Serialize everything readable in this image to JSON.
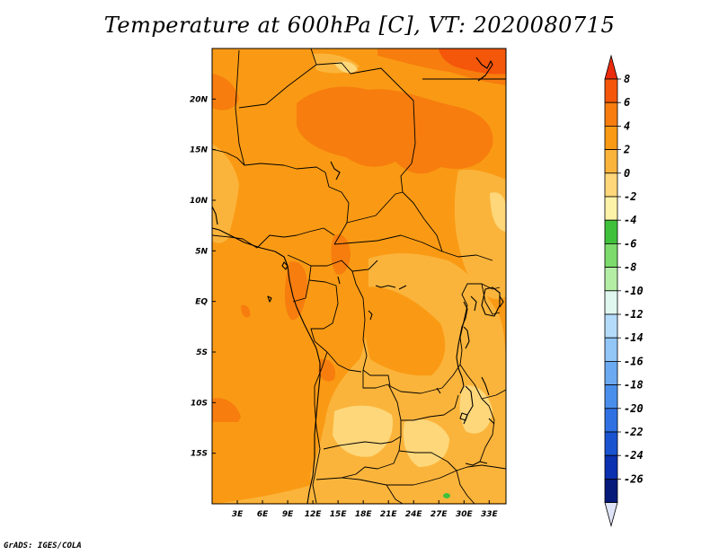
{
  "title": "Temperature at 600hPa [C], VT: 2020080715",
  "credit": "GrADS: IGES/COLA",
  "map": {
    "lat_range": [
      -20,
      25
    ],
    "lon_range": [
      0,
      35
    ],
    "lon_ticks": [
      {
        "value": 3,
        "label": "3E"
      },
      {
        "value": 6,
        "label": "6E"
      },
      {
        "value": 9,
        "label": "9E"
      },
      {
        "value": 12,
        "label": "12E"
      },
      {
        "value": 15,
        "label": "15E"
      },
      {
        "value": 18,
        "label": "18E"
      },
      {
        "value": 21,
        "label": "21E"
      },
      {
        "value": 24,
        "label": "24E"
      },
      {
        "value": 27,
        "label": "27E"
      },
      {
        "value": 30,
        "label": "30E"
      },
      {
        "value": 33,
        "label": "33E"
      }
    ],
    "lat_ticks": [
      {
        "value": 20,
        "label": "20N"
      },
      {
        "value": 15,
        "label": "15N"
      },
      {
        "value": 10,
        "label": "10N"
      },
      {
        "value": 5,
        "label": "5N"
      },
      {
        "value": 0,
        "label": "EQ"
      },
      {
        "value": -5,
        "label": "5S"
      },
      {
        "value": -10,
        "label": "10S"
      },
      {
        "value": -15,
        "label": "15S"
      }
    ],
    "base_color": "#fa9a14"
  },
  "colorbar": {
    "levels": [
      "8",
      "6",
      "4",
      "2",
      "0",
      "-2",
      "-4",
      "-6",
      "-8",
      "-10",
      "-12",
      "-14",
      "-16",
      "-18",
      "-20",
      "-22",
      "-24",
      "-26"
    ],
    "colors": [
      "#eb2b0d",
      "#f4560a",
      "#f77d0e",
      "#fa9a14",
      "#fbb43b",
      "#fdd77a",
      "#fdf3a8",
      "#40c13c",
      "#7cdb6c",
      "#b3eea4",
      "#dff7ee",
      "#b4dbfa",
      "#91c6f7",
      "#6baaf1",
      "#4a8eec",
      "#2f71e2",
      "#1a53d0",
      "#0c31b0",
      "#061a7a",
      "#dfe3f7"
    ]
  }
}
